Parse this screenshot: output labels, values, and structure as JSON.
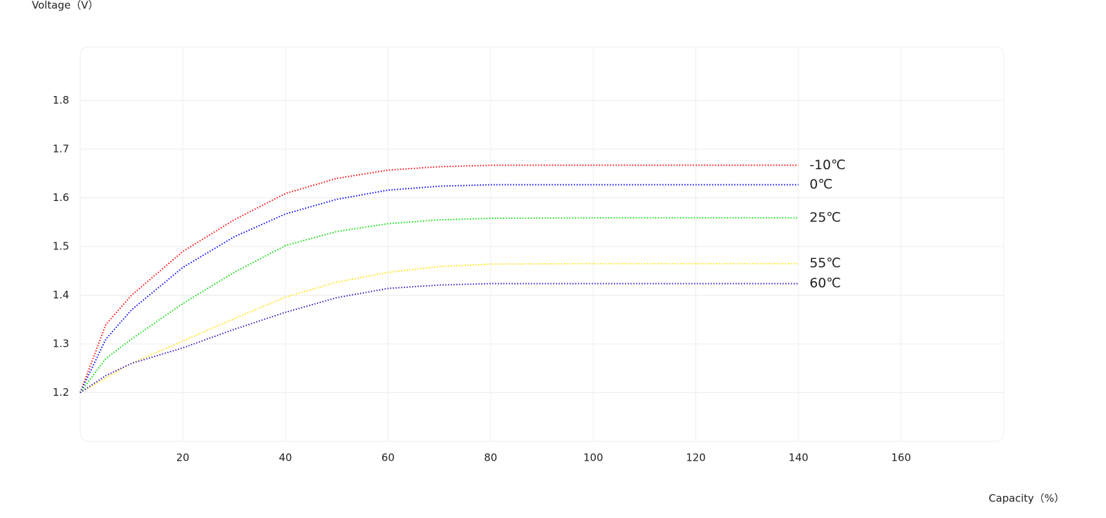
{
  "chart_data": {
    "type": "line",
    "y_label": "Voltage（V）",
    "x_label": "Capacity（%）",
    "x": [
      0,
      5,
      10,
      20,
      30,
      40,
      50,
      60,
      70,
      80,
      100,
      120,
      140
    ],
    "series": [
      {
        "name": "-10℃",
        "color": "#ff0000",
        "values": [
          1.2,
          1.34,
          1.4,
          1.49,
          1.555,
          1.609,
          1.64,
          1.657,
          1.664,
          1.667,
          1.667,
          1.667,
          1.667
        ]
      },
      {
        "name": "0℃",
        "color": "#0000ff",
        "values": [
          1.2,
          1.31,
          1.37,
          1.457,
          1.52,
          1.567,
          1.597,
          1.616,
          1.624,
          1.627,
          1.627,
          1.627,
          1.627
        ]
      },
      {
        "name": "25℃",
        "color": "#00dd00",
        "values": [
          1.2,
          1.27,
          1.31,
          1.383,
          1.447,
          1.502,
          1.531,
          1.547,
          1.555,
          1.558,
          1.559,
          1.559,
          1.559
        ]
      },
      {
        "name": "55℃",
        "color": "#ffe000",
        "values": [
          1.2,
          1.23,
          1.26,
          1.306,
          1.352,
          1.396,
          1.427,
          1.447,
          1.459,
          1.464,
          1.465,
          1.465,
          1.465
        ]
      },
      {
        "name": "60℃",
        "color": "#3a10c0",
        "values": [
          1.2,
          1.235,
          1.26,
          1.292,
          1.33,
          1.365,
          1.395,
          1.414,
          1.421,
          1.424,
          1.424,
          1.424,
          1.424
        ]
      }
    ],
    "xlim": [
      0,
      180
    ],
    "xticks": [
      20,
      40,
      60,
      80,
      100,
      120,
      140,
      160
    ],
    "ylim": [
      1.1,
      1.91
    ],
    "yticks": [
      1.2,
      1.3,
      1.4,
      1.5,
      1.6,
      1.7,
      1.8
    ],
    "grid": true
  }
}
